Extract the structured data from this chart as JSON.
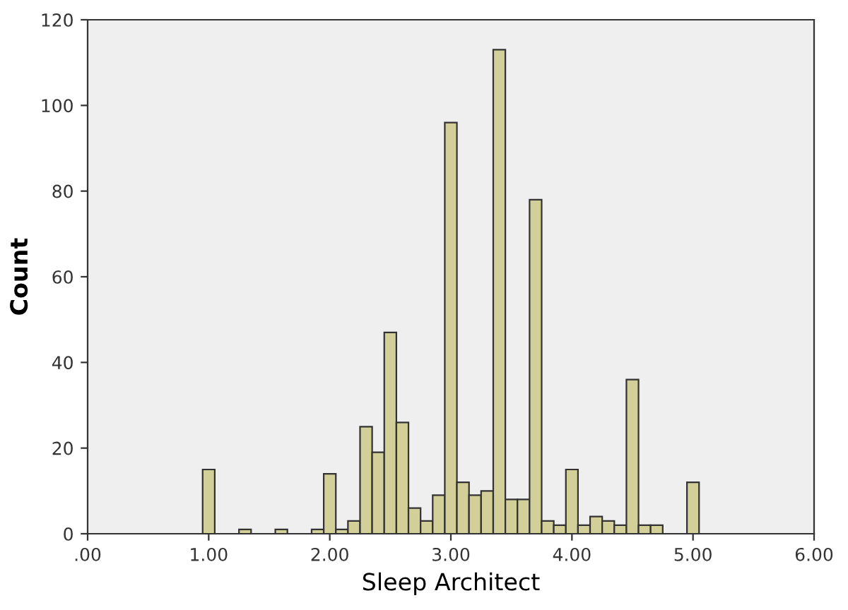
{
  "chart_data": {
    "type": "histogram",
    "xlabel": "Sleep Architect",
    "ylabel": "Count",
    "color": "#d3cf98",
    "bins": [
      0.95,
      1.05,
      1.15,
      1.25,
      1.35,
      1.45,
      1.55,
      1.65,
      1.75,
      1.85,
      1.95,
      2.05,
      2.15,
      2.25,
      2.35,
      2.45,
      2.55,
      2.65,
      2.75,
      2.85,
      2.95,
      3.05,
      3.15,
      3.25,
      3.35,
      3.45,
      3.55,
      3.65,
      3.75,
      3.85,
      3.95,
      4.05,
      4.15,
      4.25,
      4.35,
      4.45,
      4.55,
      4.65,
      4.75,
      4.85,
      4.95,
      5.05
    ],
    "values": [
      15,
      0,
      0,
      1,
      0,
      0,
      1,
      0,
      0,
      1,
      14,
      1,
      3,
      25,
      19,
      47,
      26,
      6,
      3,
      9,
      96,
      12,
      9,
      10,
      113,
      8,
      8,
      78,
      3,
      2,
      15,
      2,
      4,
      3,
      2,
      36,
      2,
      2,
      0,
      0,
      12
    ],
    "xlim": [
      0,
      6
    ],
    "ylim": [
      0,
      120
    ],
    "xticks": [
      {
        "value": 0,
        "label": ".00"
      },
      {
        "value": 1,
        "label": "1.00"
      },
      {
        "value": 2,
        "label": "2.00"
      },
      {
        "value": 3,
        "label": "3.00"
      },
      {
        "value": 4,
        "label": "4.00"
      },
      {
        "value": 5,
        "label": "5.00"
      },
      {
        "value": 6,
        "label": "6.00"
      }
    ],
    "yticks": [
      0,
      20,
      40,
      60,
      80,
      100,
      120
    ],
    "grid": false
  }
}
